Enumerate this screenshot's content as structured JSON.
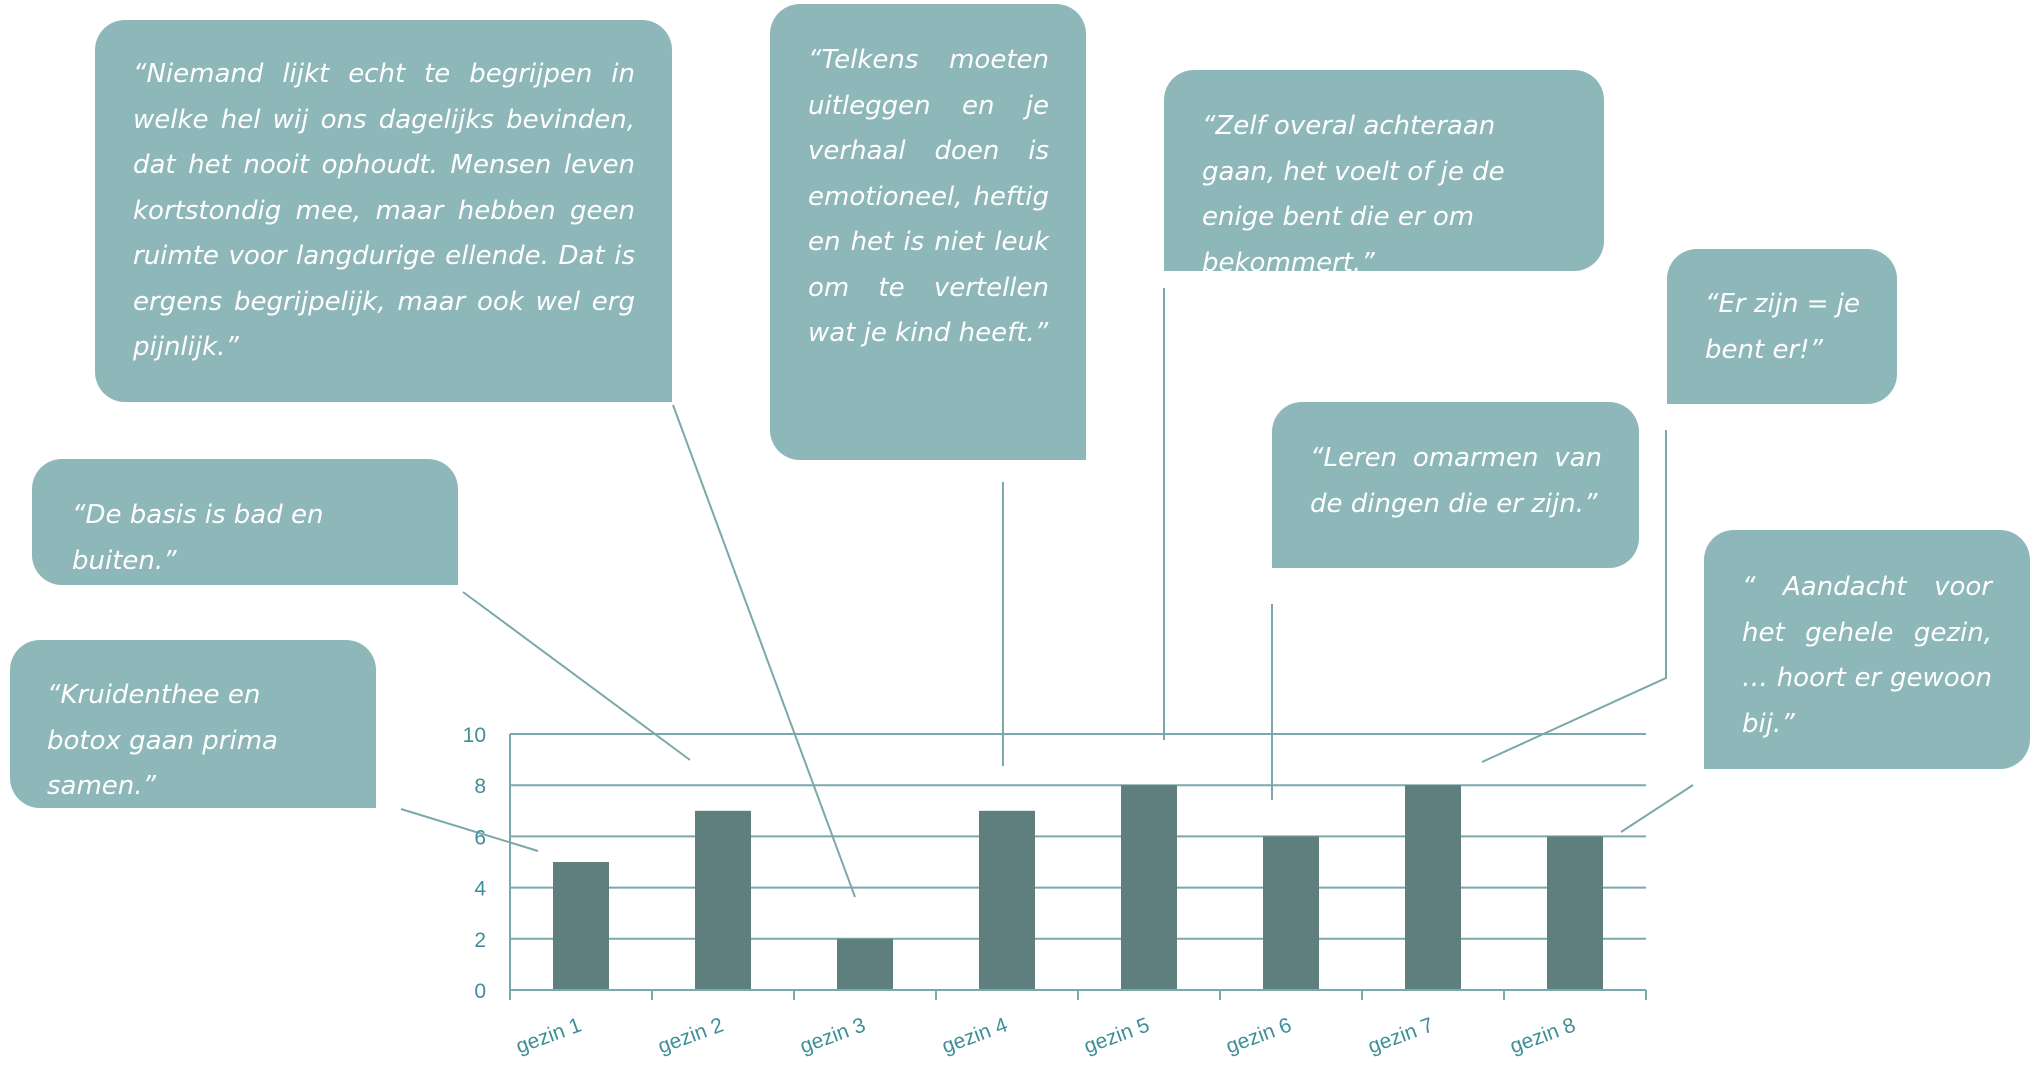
{
  "chart_data": {
    "type": "bar",
    "categories": [
      "gezin 1",
      "gezin 2",
      "gezin 3",
      "gezin 4",
      "gezin 5",
      "gezin 6",
      "gezin 7",
      "gezin 8"
    ],
    "values": [
      5,
      7,
      2,
      7,
      8,
      6,
      8,
      6
    ],
    "ylim": [
      0,
      10
    ],
    "yticks": [
      0,
      2,
      4,
      6,
      8,
      10
    ],
    "grid": true,
    "title": "",
    "xlabel": "",
    "ylabel": ""
  },
  "colors": {
    "bar": "#5f7f7f",
    "gridline": "#7aa8ab",
    "axis_text": "#3e8f98",
    "callout_fill": "#8eb7ba",
    "callout_text": "#ffffff",
    "connector": "#7aa8ab"
  },
  "quotes": [
    {
      "text": "“Niemand lijkt echt te begrijpen in welke hel wij ons dagelijks bevinden, dat het nooit ophoudt. Mensen leven kortstondig mee, maar hebben geen ruimte voor langdurige ellende. Dat is ergens begrijpelijk, maar ook wel erg pijnlijk.”",
      "category": "gezin 3"
    },
    {
      "text": "“Telkens moeten uitleggen en je verhaal doen is emotioneel, heftig en het is niet leuk om te vertellen wat je kind heeft.”",
      "category": "gezin 4"
    },
    {
      "text": "“Zelf overal achteraan gaan, het voelt of je de enige bent die er om bekommert.”",
      "category": "gezin 5"
    },
    {
      "text": "“Er zijn = je bent er!”",
      "category": "gezin 7"
    },
    {
      "text": "“De basis is bad en buiten.”",
      "category": "gezin 2"
    },
    {
      "text": "“Leren omarmen van de dingen die er zijn.”",
      "category": "gezin 6"
    },
    {
      "text": "“Kruidenthee en botox gaan prima samen.”",
      "category": "gezin 1"
    },
    {
      "text": "“ Aandacht voor het gehele gezin, … hoort er gewoon bij.”",
      "category": "gezin 8"
    }
  ]
}
